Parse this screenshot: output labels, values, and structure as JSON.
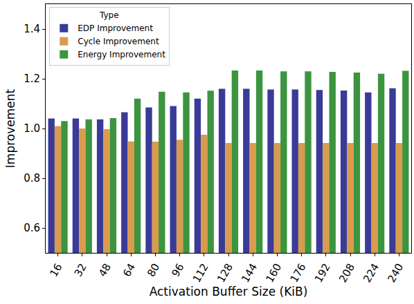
{
  "chart_data": {
    "type": "bar",
    "x_label": "Activation Buffer Size (KiB)",
    "y_label": "Improvement",
    "legend_title": "Type",
    "legend": "upper left",
    "grid": false,
    "categories": [
      "16",
      "32",
      "48",
      "64",
      "80",
      "96",
      "112",
      "128",
      "144",
      "160",
      "176",
      "192",
      "208",
      "224",
      "240"
    ],
    "series": [
      {
        "name": "EDP Improvement",
        "color": "#3a3a98",
        "values": [
          1.04,
          1.04,
          1.037,
          1.065,
          1.085,
          1.09,
          1.12,
          1.16,
          1.16,
          1.157,
          1.157,
          1.155,
          1.153,
          1.145,
          1.162
        ]
      },
      {
        "name": "Cycle Improvement",
        "color": "#d99b4e",
        "values": [
          1.01,
          1.0,
          0.997,
          0.948,
          0.947,
          0.955,
          0.975,
          0.942,
          0.942,
          0.942,
          0.942,
          0.942,
          0.942,
          0.942,
          0.942
        ]
      },
      {
        "name": "Energy Improvement",
        "color": "#3c943f",
        "values": [
          1.03,
          1.037,
          1.042,
          1.12,
          1.148,
          1.145,
          1.152,
          1.233,
          1.233,
          1.23,
          1.23,
          1.228,
          1.225,
          1.22,
          1.232
        ]
      }
    ],
    "ylim": [
      0.5,
      1.5
    ],
    "yticks": [
      0.6,
      0.8,
      {
        "value": 1,
        "label": "1.0"
      },
      1.2,
      1.4
    ]
  }
}
